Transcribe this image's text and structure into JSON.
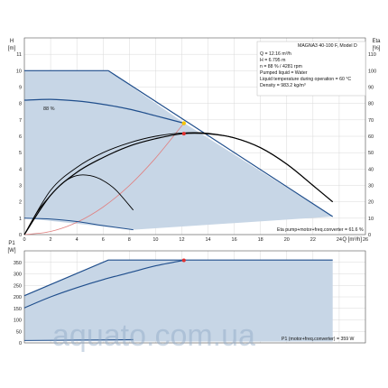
{
  "info": {
    "model": "MAGNA3 40-100 F, Model D",
    "lines": [
      "Q = 12.16 m³/h",
      "H = 6.795 m",
      "n = 88 % / 4281 rpm",
      "Pumped liquid = Water",
      "Liquid temperature during operation = 60 °C",
      "Density = 983.2 kg/m³"
    ],
    "eta_note": "Eta pump+motor+freq.converter = 61.6 %",
    "p1_note": "P1 (motor+freq.converter) = 359 W",
    "curve_label": "88 %"
  },
  "watermark": "aquato.com.ua",
  "colors": {
    "area_fill": "#c7d6e6",
    "curve_blue": "#1f4e8c",
    "curve_black": "#000000",
    "system_curve": "#e08080",
    "op_point": "#e03030",
    "op_point_yellow": "#f5c400",
    "grid": "#d8d8d8"
  },
  "chart_data": [
    {
      "type": "line",
      "panel": "head-eta",
      "ylabel": "H [m]",
      "y2label": "Eta [%]",
      "xlabel": "Q [m³/h]",
      "xlim": [
        0,
        26
      ],
      "ylim": [
        0,
        12
      ],
      "y2lim": [
        0,
        120
      ],
      "xticks": [
        0,
        2,
        4,
        6,
        8,
        10,
        12,
        14,
        16,
        18,
        20,
        22,
        24,
        26
      ],
      "yticks": [
        0,
        1,
        2,
        3,
        4,
        5,
        6,
        7,
        8,
        9,
        10,
        11
      ],
      "y2ticks": [
        0,
        10,
        20,
        30,
        40,
        50,
        60,
        70,
        80,
        90,
        100,
        110
      ],
      "grid": true,
      "area": {
        "x": [
          0,
          6.4,
          12.2,
          23.5,
          8.3,
          0
        ],
        "y": [
          10,
          10,
          6.8,
          1.1,
          0.3,
          1.0
        ]
      },
      "series": [
        {
          "role": "max-speed",
          "x": [
            0,
            6.4,
            23.5
          ],
          "y": [
            10,
            10,
            1.1
          ]
        },
        {
          "role": "min-speed",
          "x": [
            0,
            2,
            4,
            6,
            8.3
          ],
          "y": [
            1.0,
            0.95,
            0.8,
            0.55,
            0.3
          ]
        },
        {
          "role": "head",
          "x": [
            0,
            2,
            4,
            6,
            8,
            10,
            12.16
          ],
          "y": [
            8.2,
            8.25,
            8.15,
            7.95,
            7.65,
            7.25,
            6.8
          ]
        },
        {
          "role": "eta",
          "x": [
            0,
            2,
            4,
            6,
            8,
            10,
            12,
            14,
            16,
            18,
            20,
            22,
            23.5
          ],
          "y": [
            0,
            24,
            38,
            47,
            54,
            58.5,
            61.5,
            61.5,
            59,
            53,
            43,
            30,
            20
          ]
        },
        {
          "role": "eta-alt",
          "x": [
            0,
            2,
            4,
            6,
            8,
            10,
            12,
            14,
            16,
            18,
            20,
            22,
            23.5
          ],
          "y": [
            0,
            27,
            41,
            50,
            56,
            60,
            62,
            61.8,
            59,
            53,
            43,
            30,
            20
          ]
        },
        {
          "role": "eta-small",
          "x": [
            0,
            1,
            2,
            3,
            4,
            5,
            6,
            7,
            8.3
          ],
          "y": [
            0,
            14,
            24,
            32,
            36,
            36,
            33,
            27,
            15
          ]
        },
        {
          "role": "system",
          "x": [
            0,
            2,
            4,
            6,
            8,
            10,
            12.16
          ],
          "y": [
            0,
            0.19,
            0.75,
            1.68,
            2.99,
            4.67,
            6.8
          ]
        }
      ],
      "operating_point": {
        "x": 12.16,
        "h": 6.795,
        "eta": 61.6
      }
    },
    {
      "type": "line",
      "panel": "power",
      "ylabel": "P1 [W]",
      "xlim": [
        0,
        26
      ],
      "ylim": [
        0,
        400
      ],
      "yticks": [
        0,
        50,
        100,
        150,
        200,
        250,
        300,
        350
      ],
      "grid": true,
      "area": {
        "x": [
          0,
          6.4,
          23.5,
          23.5,
          8.3,
          0
        ],
        "y": [
          205,
          360,
          360,
          6,
          6,
          10
        ]
      },
      "series": [
        {
          "role": "max-power",
          "x": [
            0,
            6.4,
            23.5
          ],
          "y": [
            205,
            360,
            360
          ]
        },
        {
          "role": "power",
          "x": [
            0,
            2,
            4,
            6,
            8,
            10,
            12.16
          ],
          "y": [
            152,
            200,
            240,
            275,
            305,
            335,
            359
          ]
        },
        {
          "role": "min-power",
          "x": [
            0,
            4,
            8.3
          ],
          "y": [
            10,
            12,
            14
          ]
        }
      ],
      "operating_point": {
        "x": 12.16,
        "p1": 359
      }
    }
  ]
}
